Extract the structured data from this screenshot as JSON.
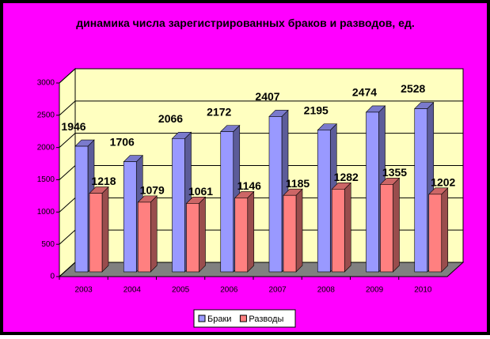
{
  "chart_data": {
    "type": "bar3d",
    "title": "динамика числа зарегистрированных браков и разводов, ед.",
    "categories": [
      "2003",
      "2004",
      "2005",
      "2006",
      "2007",
      "2008",
      "2009",
      "2010"
    ],
    "series": [
      {
        "name": "Браки",
        "color": "#9999ff",
        "values": [
          1946,
          1706,
          2066,
          2172,
          2407,
          2195,
          2474,
          2528
        ]
      },
      {
        "name": "Разводы",
        "color": "#ff8080",
        "values": [
          1218,
          1079,
          1061,
          1146,
          1185,
          1282,
          1355,
          1202
        ]
      }
    ],
    "ylim": [
      0,
      3000
    ],
    "yticks": [
      0,
      500,
      1000,
      1500,
      2000,
      2500,
      3000
    ],
    "grid": true,
    "legend": "bottom"
  }
}
